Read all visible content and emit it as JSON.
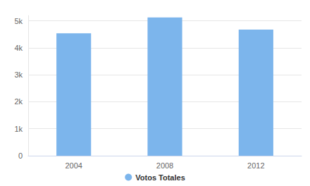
{
  "chart_data": {
    "type": "bar",
    "categories": [
      "2004",
      "2008",
      "2012"
    ],
    "series": [
      {
        "name": "Votos Totales",
        "color": "#7cb5ec",
        "values": [
          4540,
          5130,
          4680
        ]
      }
    ],
    "ylim": [
      0,
      5200
    ],
    "yticks": [
      0,
      {
        "value": 1000,
        "label": "1k"
      },
      {
        "value": 2000,
        "label": "2k"
      },
      {
        "value": 3000,
        "label": "3k"
      },
      {
        "value": 4000,
        "label": "4k"
      },
      {
        "value": 5000,
        "label": "5k"
      }
    ],
    "grid": true,
    "legend": "bottom"
  }
}
